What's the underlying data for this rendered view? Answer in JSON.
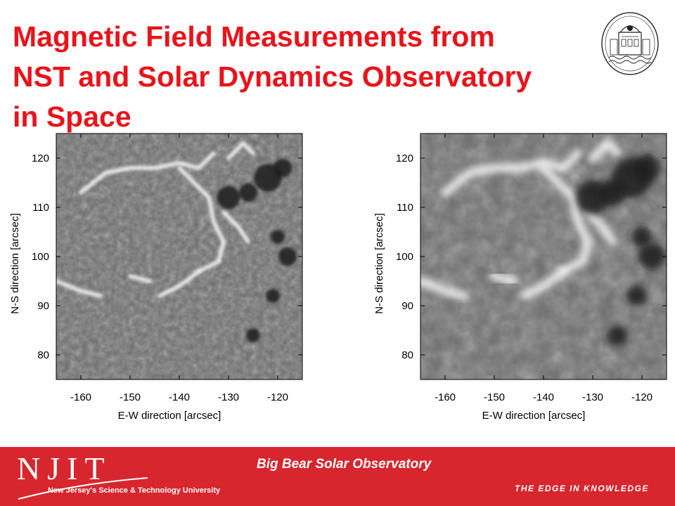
{
  "slide": {
    "title_lines": [
      "Magnetic Field Measurements from",
      "NST and Solar Dynamics Observatory",
      "in Space"
    ]
  },
  "logo": {
    "icon": "observatory-seal-icon"
  },
  "figures": [
    {
      "x_ticks": [
        "-160",
        "-150",
        "-140",
        "-130",
        "-120"
      ],
      "y_ticks": [
        "120",
        "110",
        "100",
        "90",
        "80"
      ],
      "xlabel": "E-W direction [arcsec]",
      "ylabel": "N-S direction [arcsec]",
      "xlim": [
        -165,
        -115
      ],
      "ylim": [
        75,
        125
      ],
      "image_style": "sharp"
    },
    {
      "x_ticks": [
        "-160",
        "-150",
        "-140",
        "-130",
        "-120"
      ],
      "y_ticks": [
        "120",
        "110",
        "100",
        "90",
        "80"
      ],
      "xlabel": "E-W direction [arcsec]",
      "ylabel": "N-S direction [arcsec]",
      "xlim": [
        -165,
        -115
      ],
      "ylim": [
        75,
        125
      ],
      "image_style": "blurred"
    }
  ],
  "footer": {
    "center_text": "Big Bear Solar Observatory",
    "logo_text": "NJIT",
    "logo_subtext": "New Jersey's Science & Technology University",
    "tagline": "THE EDGE IN KNOWLEDGE",
    "background_color": "#d7262e"
  }
}
